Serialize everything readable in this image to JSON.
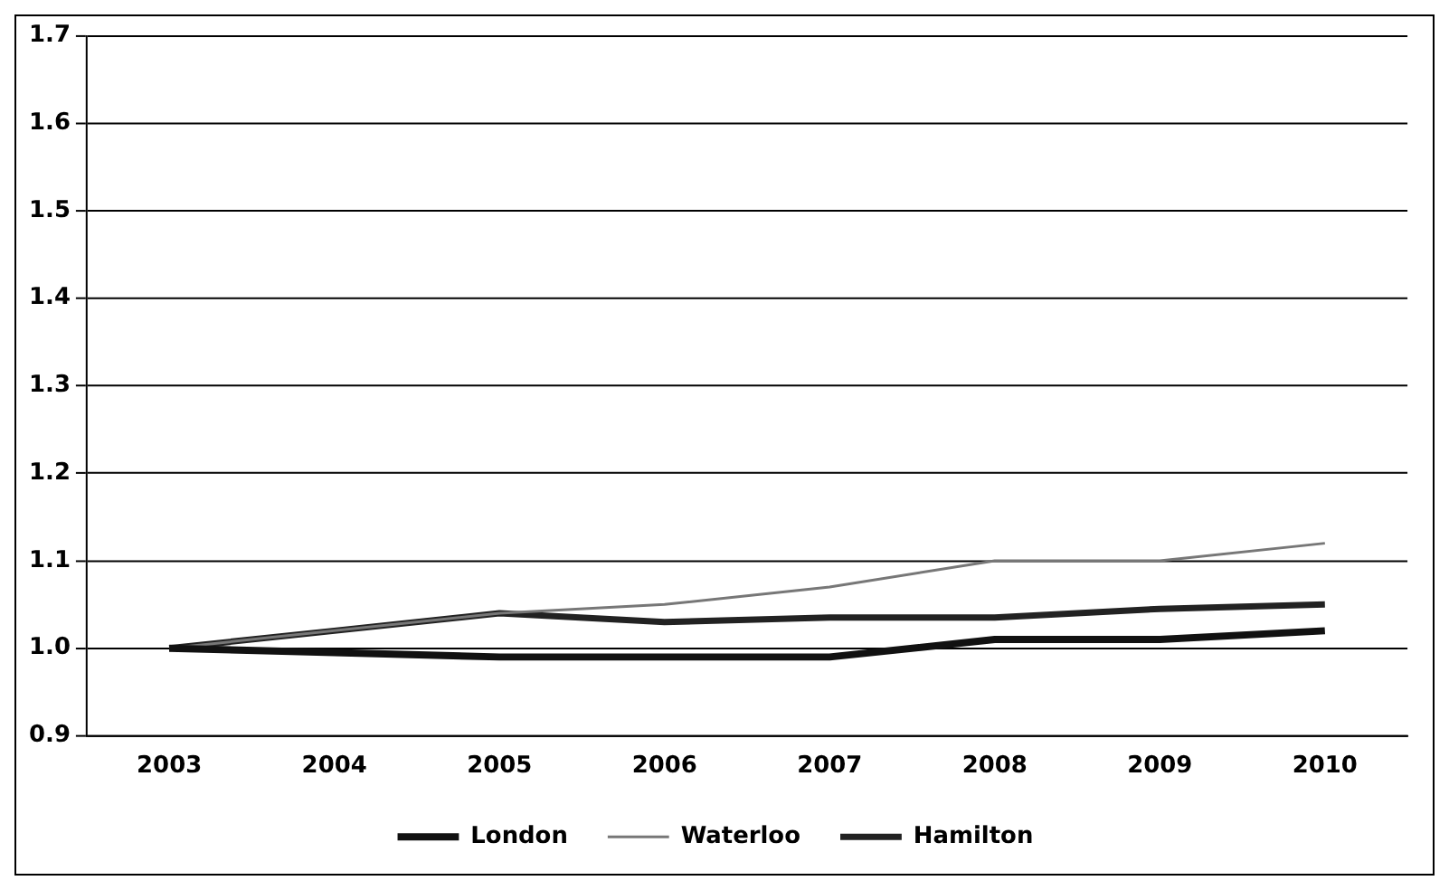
{
  "chart_data": {
    "type": "line",
    "categories": [
      "2003",
      "2004",
      "2005",
      "2006",
      "2007",
      "2008",
      "2009",
      "2010"
    ],
    "series": [
      {
        "name": "London",
        "color": "#111111",
        "values": [
          1.0,
          0.995,
          0.99,
          0.99,
          0.99,
          1.01,
          1.01,
          1.02
        ]
      },
      {
        "name": "Waterloo",
        "color": "#777777",
        "values": [
          1.0,
          1.02,
          1.04,
          1.05,
          1.07,
          1.1,
          1.1,
          1.12
        ]
      },
      {
        "name": "Hamilton",
        "color": "#222222",
        "values": [
          1.0,
          1.02,
          1.04,
          1.03,
          1.035,
          1.035,
          1.045,
          1.05
        ]
      }
    ],
    "ylim": [
      0.9,
      1.7
    ],
    "yticks": [
      {
        "value": 0.9,
        "label": "0.9"
      },
      {
        "value": 1.0,
        "label": "1.0"
      },
      {
        "value": 1.1,
        "label": "1.1"
      },
      {
        "value": 1.2,
        "label": "1.2"
      },
      {
        "value": 1.3,
        "label": "1.3"
      },
      {
        "value": 1.4,
        "label": "1.4"
      },
      {
        "value": 1.5,
        "label": "1.5"
      },
      {
        "value": 1.6,
        "label": "1.6"
      },
      {
        "value": 1.7,
        "label": "1.7"
      }
    ],
    "grid": "y",
    "legend": "bottom",
    "marker": "none",
    "line_style": "solid"
  }
}
